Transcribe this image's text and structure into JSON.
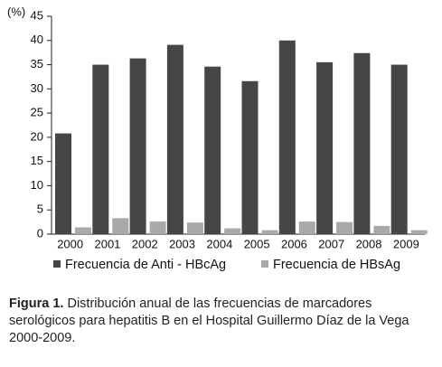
{
  "chart_data": {
    "type": "bar",
    "y_label": "(%)",
    "categories": [
      "2000",
      "2001",
      "2002",
      "2003",
      "2004",
      "2005",
      "2006",
      "2007",
      "2008",
      "2009"
    ],
    "series": [
      {
        "name": "Frecuencia de Anti - HBcAg",
        "color": "#464646",
        "values": [
          20.8,
          35,
          36.3,
          39.1,
          34.6,
          31.6,
          40,
          35.5,
          37.4,
          35
        ]
      },
      {
        "name": "Frecuencia de HBsAg",
        "color": "#a9a9a9",
        "values": [
          1.4,
          3.3,
          2.6,
          2.4,
          1.2,
          0.8,
          2.6,
          2.5,
          1.7,
          0.8
        ]
      }
    ],
    "ylim": [
      0,
      45
    ],
    "yticks": [
      0,
      5,
      10,
      15,
      20,
      25,
      30,
      35,
      40,
      45
    ],
    "grid": false,
    "caption_label": "Figura 1.",
    "caption": "Distribución anual de las frecuencias de marcadores serológicos para hepatitis B en el Hospital Guillermo Díaz de la Vega 2000-2009."
  }
}
